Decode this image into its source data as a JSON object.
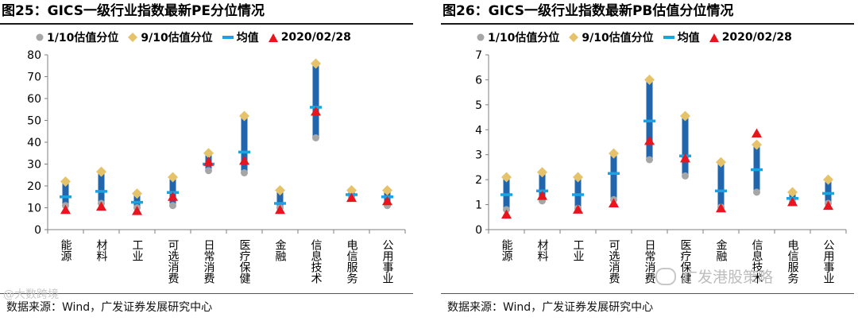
{
  "charts": [
    {
      "title": "图25：GICS一级行业指数最新PE分位情况",
      "source": "数据来源：Wind，广发证券发展研究中心",
      "legend": {
        "p10": "1/10估值分位",
        "p90": "9/10估值分位",
        "mean": "均值",
        "latest": "2020/02/28"
      }
    },
    {
      "title": "图26：GICS一级行业指数最新PB估值分位情况",
      "source": "数据来源：Wind，广发证券发展研究中心",
      "legend": {
        "p10": "1/10估值分位",
        "p90": "9/10估值分位",
        "mean": "均值",
        "latest": "2020/02/28"
      }
    }
  ],
  "watermark": {
    "right": "广发港股策略",
    "left": "@大数跨境"
  },
  "colors": {
    "p10": "#a6a6a6",
    "p90": "#e6c36a",
    "mean": "#1aa3e0",
    "latest": "#e8141e",
    "range_bar": "#2166ac"
  },
  "chart_data": [
    {
      "type": "range",
      "categories": [
        "能源",
        "材料",
        "工业",
        "可选消费",
        "日常消费",
        "医疗保健",
        "金融",
        "信息技术",
        "电信服务",
        "公用事业"
      ],
      "ylim": [
        0,
        80
      ],
      "yticks": [
        0,
        10,
        20,
        30,
        40,
        50,
        60,
        70,
        80
      ],
      "series": [
        {
          "name": "1/10估值分位",
          "values": [
            11,
            12,
            10,
            11,
            27,
            26,
            10,
            42,
            15,
            11
          ]
        },
        {
          "name": "9/10估值分位",
          "values": [
            22,
            26.5,
            16.5,
            24,
            35,
            52,
            18,
            76,
            18,
            18
          ]
        },
        {
          "name": "均值",
          "values": [
            15,
            17.5,
            12.5,
            17,
            30,
            35.5,
            12,
            56,
            16,
            15
          ]
        },
        {
          "name": "2020/02/28",
          "values": [
            9,
            10.5,
            8.5,
            15,
            31,
            31.5,
            9,
            54,
            14.5,
            13
          ]
        }
      ]
    },
    {
      "type": "range",
      "categories": [
        "能源",
        "材料",
        "工业",
        "可选消费",
        "日常消费",
        "医疗保健",
        "金融",
        "信息技术",
        "电信服务",
        "公用事业"
      ],
      "ylim": [
        0,
        7
      ],
      "yticks": [
        0,
        1,
        2,
        3,
        4,
        5,
        6,
        7
      ],
      "series": [
        {
          "name": "1/10估值分位",
          "values": [
            0.8,
            1.15,
            0.85,
            1.2,
            2.8,
            2.15,
            0.9,
            1.5,
            1.1,
            1.05
          ]
        },
        {
          "name": "9/10估值分位",
          "values": [
            2.1,
            2.3,
            2.1,
            3.05,
            6.0,
            4.55,
            2.7,
            3.4,
            1.5,
            2.0
          ]
        },
        {
          "name": "均值",
          "values": [
            1.4,
            1.55,
            1.4,
            2.25,
            4.35,
            2.95,
            1.55,
            2.4,
            1.25,
            1.45
          ]
        },
        {
          "name": "2020/02/28",
          "values": [
            0.6,
            1.35,
            0.8,
            1.05,
            3.55,
            2.85,
            0.85,
            3.85,
            1.1,
            0.95
          ]
        }
      ]
    }
  ]
}
